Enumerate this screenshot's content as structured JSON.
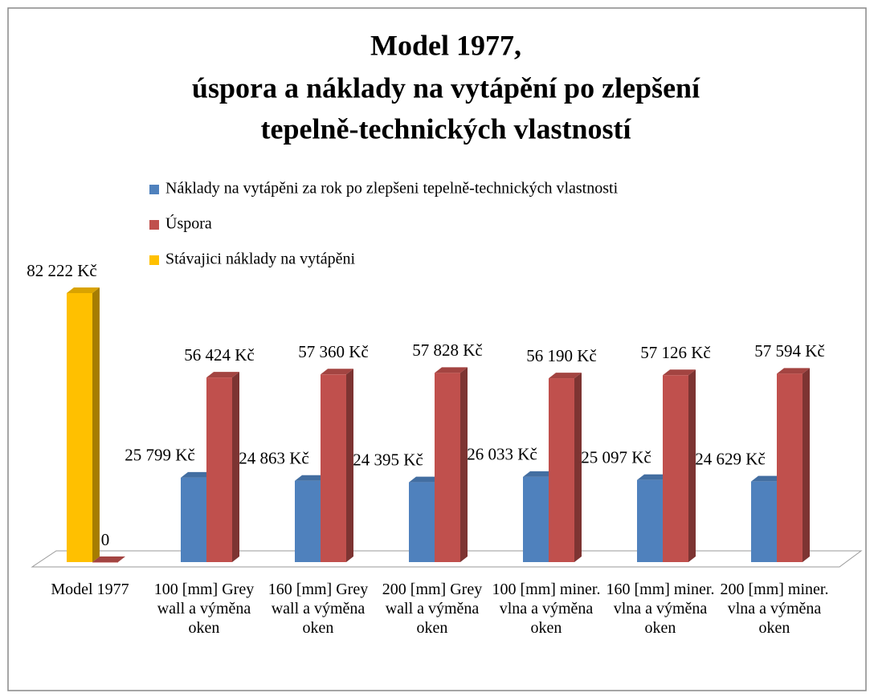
{
  "chart_data": {
    "type": "bar3d",
    "title": [
      "Model 1977,",
      "úspora a náklady na vytápění po zlepšení",
      "tepelně-technických vlastností"
    ],
    "categories": [
      "Model 1977",
      "100 [mm] Grey wall a výměna oken",
      "160 [mm] Grey wall a výměna oken",
      "200 [mm] Grey wall a výměna oken",
      "100 [mm] miner. vlna a výměna oken",
      "160 [mm] miner. vlna a výměna oken",
      "200 [mm] miner. vlna a výměna oken"
    ],
    "series": [
      {
        "name": "Náklady na vytápěni za rok po zlepšeni tepelně-technických vlastnosti",
        "color": "#4f81bd",
        "values": [
          null,
          25799,
          24863,
          24395,
          26033,
          25097,
          24629
        ],
        "value_labels": [
          null,
          "25 799 Kč",
          "24 863 Kč",
          "24 395 Kč",
          "26 033 Kč",
          "25 097 Kč",
          "24 629 Kč"
        ]
      },
      {
        "name": "Úspora",
        "color": "#c0504d",
        "values": [
          0,
          56424,
          57360,
          57828,
          56190,
          57126,
          57594
        ],
        "value_labels": [
          "0",
          "56 424 Kč",
          "57 360 Kč",
          "57 828 Kč",
          "56 190 Kč",
          "57 126 Kč",
          "57 594 Kč"
        ]
      },
      {
        "name": "Stávajici náklady na vytápěni",
        "color": "#ffc000",
        "values": [
          82222,
          null,
          null,
          null,
          null,
          null,
          null
        ],
        "value_labels": [
          "82 222 Kč",
          null,
          null,
          null,
          null,
          null,
          null
        ]
      }
    ]
  }
}
